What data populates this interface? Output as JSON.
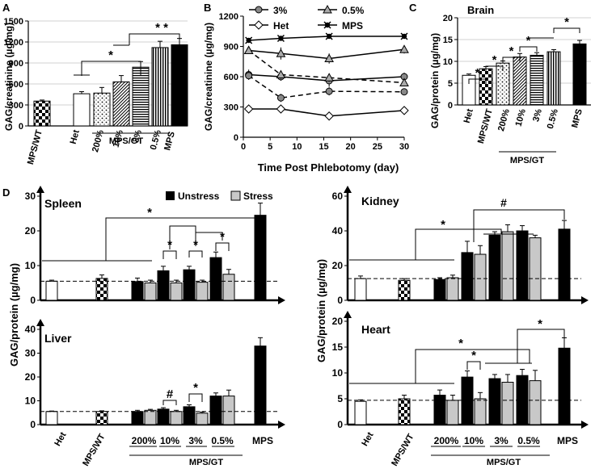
{
  "chart_data": [
    {
      "panel": "A",
      "type": "bar",
      "ylabel": "GAG/creatinine (µg/mg)",
      "ylim": [
        0,
        1500
      ],
      "yticks": [
        0,
        300,
        600,
        900,
        1200,
        1500
      ],
      "ytick_labels": [
        "0",
        "300",
        "600",
        "900",
        "1200",
        "1500"
      ],
      "categories": [
        "MPS/WT",
        "Het",
        "200%",
        "10%",
        "3%",
        "0.5%",
        "MPS"
      ],
      "values": [
        355,
        460,
        470,
        630,
        840,
        1120,
        1160
      ],
      "errors": [
        15,
        30,
        80,
        90,
        80,
        90,
        90
      ],
      "patterns": [
        "checker",
        "white",
        "dots",
        "diag",
        "hlines",
        "vlines",
        "black"
      ],
      "group_label": "MPS/GT",
      "sig": [
        {
          "label": "*",
          "from": "Het",
          "to": "3%"
        },
        {
          "label": "* *",
          "from": "Het",
          "to": "MPS"
        }
      ]
    },
    {
      "panel": "B",
      "type": "line",
      "xlabel": "Time Post Phlebotomy (day)",
      "ylabel": "GAG/creatinine (µg/mg)",
      "xlim": [
        0,
        30
      ],
      "ylim": [
        0,
        1200
      ],
      "xticks": [
        0,
        5,
        10,
        15,
        20,
        25,
        30
      ],
      "xtick_labels": [
        "0",
        "5",
        "10",
        "15",
        "20",
        "25",
        "30"
      ],
      "yticks": [
        0,
        300,
        600,
        900,
        1200
      ],
      "ytick_labels": [
        "0",
        "300",
        "600",
        "900",
        "1200"
      ],
      "legend": [
        "3%",
        "0.5%",
        "Het",
        "MPS"
      ],
      "series": [
        {
          "name": "3%",
          "marker": "circle",
          "dash": false,
          "x": [
            1,
            7,
            16,
            30
          ],
          "y": [
            620,
            600,
            560,
            600
          ],
          "err": [
            50,
            40,
            60,
            40
          ]
        },
        {
          "name": "3%",
          "marker": "circle",
          "dash": true,
          "x": [
            1,
            7,
            16,
            30
          ],
          "y": [
            610,
            390,
            455,
            450
          ],
          "err": [
            40,
            40,
            40,
            30
          ]
        },
        {
          "name": "0.5%",
          "marker": "triangle",
          "dash": false,
          "x": [
            1,
            7,
            16,
            30
          ],
          "y": [
            860,
            830,
            780,
            870
          ],
          "err": [
            30,
            60,
            50,
            40
          ]
        },
        {
          "name": "0.5%",
          "marker": "triangle",
          "dash": true,
          "x": [
            1,
            7,
            16,
            30
          ],
          "y": [
            860,
            620,
            590,
            540
          ],
          "err": [
            30,
            40,
            40,
            30
          ]
        },
        {
          "name": "Het",
          "marker": "diamond",
          "dash": false,
          "x": [
            1,
            7,
            16,
            30
          ],
          "y": [
            280,
            280,
            210,
            265
          ],
          "err": [
            10,
            10,
            10,
            15
          ]
        },
        {
          "name": "MPS",
          "marker": "x",
          "dash": false,
          "x": [
            1,
            7,
            16,
            30
          ],
          "y": [
            960,
            980,
            1000,
            1000
          ],
          "err": [
            15,
            20,
            20,
            15
          ]
        }
      ]
    },
    {
      "panel": "C",
      "type": "bar",
      "title": "Brain",
      "ylabel": "GAG/protein (µg/mg)",
      "ylim": [
        0,
        20
      ],
      "yticks": [
        0,
        5,
        10,
        15,
        20
      ],
      "ytick_labels": [
        "0",
        "5",
        "10",
        "15",
        "20"
      ],
      "categories": [
        "Het",
        "MPS/WT",
        "200%",
        "10%",
        "3%",
        "0.5%",
        "MPS"
      ],
      "values": [
        6.8,
        8.3,
        9.6,
        11.0,
        11.4,
        12.2,
        14.0
      ],
      "errors": [
        0.3,
        0.5,
        0.5,
        0.8,
        0.6,
        0.5,
        0.8
      ],
      "patterns": [
        "white",
        "checker",
        "dots",
        "diag",
        "hlines",
        "vlines",
        "black"
      ],
      "group_label": "MPS/GT",
      "sig": [
        {
          "label": "*",
          "from": "Het",
          "to": "MPS/WT"
        },
        {
          "label": "*",
          "from": "MPS/WT",
          "to": "200%"
        },
        {
          "label": "*",
          "from": "200%",
          "to": "10%"
        },
        {
          "label": "*",
          "from": "10%",
          "to": "3%"
        },
        {
          "label": "*",
          "from": "0.5%",
          "to": "MPS"
        }
      ]
    },
    {
      "panel": "D",
      "type": "bar",
      "title": "Spleen",
      "ylim": [
        0,
        30
      ],
      "yticks": [
        0,
        10,
        20,
        30
      ],
      "ytick_labels": [
        "0",
        "10",
        "20",
        "30"
      ],
      "legend": [
        "Unstress",
        "Stress"
      ],
      "categories": [
        "Het",
        "MPS/WT",
        "200%",
        "10%",
        "3%",
        "0.5%",
        "MPS"
      ],
      "series": [
        {
          "name": "Unstress",
          "values": [
            5.5,
            6.3,
            5.4,
            8.5,
            8.8,
            12.3,
            24.5
          ],
          "errors": [
            0.3,
            1.0,
            1.0,
            1.3,
            1.0,
            1.6,
            3.5
          ]
        },
        {
          "name": "Stress",
          "values": [
            null,
            null,
            5.0,
            5.0,
            5.2,
            7.5,
            null
          ],
          "errors": [
            null,
            null,
            0.8,
            0.8,
            0.6,
            1.4,
            null
          ]
        }
      ],
      "baseline": 5.5,
      "sig": [
        {
          "label": "*",
          "from": "200%",
          "to": "MPS"
        },
        {
          "label": "*",
          "from": "10%",
          "to": "10%"
        },
        {
          "label": "*",
          "from": "3%",
          "to": "3%"
        },
        {
          "label": "*",
          "from": "0.5%",
          "to": "0.5%"
        }
      ]
    },
    {
      "panel": "D",
      "type": "bar",
      "title": "Liver",
      "ylabel": "GAG/protein (µg/mg)",
      "ylim": [
        0,
        40
      ],
      "yticks": [
        0,
        10,
        20,
        30,
        40
      ],
      "ytick_labels": [
        "0",
        "10",
        "20",
        "30",
        "40"
      ],
      "categories": [
        "Het",
        "MPS/WT",
        "200%",
        "10%",
        "3%",
        "0.5%",
        "MPS"
      ],
      "series": [
        {
          "name": "Unstress",
          "values": [
            5.5,
            5.5,
            5.5,
            6.5,
            7.5,
            12.0,
            33.0
          ],
          "errors": [
            0.2,
            0.3,
            0.5,
            0.6,
            0.8,
            1.3,
            3.5
          ]
        },
        {
          "name": "Stress",
          "values": [
            null,
            null,
            6.0,
            5.5,
            4.8,
            12.0,
            null
          ],
          "errors": [
            null,
            null,
            0.4,
            0.5,
            0.5,
            2.5,
            null
          ]
        }
      ],
      "baseline": 5.5,
      "group_label": "MPS/GT",
      "sig": [
        {
          "label": "#",
          "from": "10%",
          "to": "10%"
        },
        {
          "label": "*",
          "from": "3%",
          "to": "3%"
        }
      ]
    },
    {
      "panel": "D",
      "type": "bar",
      "title": "Kidney",
      "ylim": [
        0,
        60
      ],
      "yticks": [
        0,
        20,
        40,
        60
      ],
      "ytick_labels": [
        "0",
        "20",
        "40",
        "60"
      ],
      "categories": [
        "Het",
        "MPS/WT",
        "200%",
        "10%",
        "3%",
        "0.5%",
        "MPS"
      ],
      "series": [
        {
          "name": "Unstress",
          "values": [
            12.5,
            11.5,
            12.0,
            27.5,
            37.5,
            40.0,
            41.0
          ],
          "errors": [
            1.5,
            1.0,
            1.0,
            6.5,
            2.0,
            3.0,
            5.0
          ]
        },
        {
          "name": "Stress",
          "values": [
            null,
            null,
            13.0,
            26.5,
            39.5,
            36.0,
            null
          ],
          "errors": [
            null,
            null,
            1.5,
            5.0,
            4.0,
            1.5,
            null
          ]
        }
      ],
      "baseline": 12.5,
      "sig": [
        {
          "label": "*",
          "from": "200%",
          "to": "3%"
        },
        {
          "label": "#",
          "from": "10%",
          "to": "MPS"
        }
      ]
    },
    {
      "panel": "D",
      "type": "bar",
      "title": "Heart",
      "ylabel": "GAG/protein (µg/mg)",
      "ylim": [
        0,
        20
      ],
      "yticks": [
        0,
        5,
        10,
        15,
        20
      ],
      "ytick_labels": [
        "0",
        "5",
        "10",
        "15",
        "20"
      ],
      "categories": [
        "Het",
        "MPS/WT",
        "200%",
        "10%",
        "3%",
        "0.5%",
        "MPS"
      ],
      "series": [
        {
          "name": "Unstress",
          "values": [
            4.5,
            5.0,
            5.7,
            9.2,
            8.9,
            9.5,
            14.8
          ],
          "errors": [
            0.3,
            0.7,
            1.0,
            1.2,
            0.8,
            1.2,
            2.0
          ]
        },
        {
          "name": "Stress",
          "values": [
            null,
            null,
            4.7,
            5.0,
            8.2,
            8.5,
            null
          ],
          "errors": [
            null,
            null,
            1.0,
            1.2,
            1.5,
            2.0,
            null
          ]
        }
      ],
      "baseline": 4.7,
      "group_label": "MPS/GT",
      "sig": [
        {
          "label": "*",
          "from": "200%",
          "to": "MPS"
        },
        {
          "label": "*",
          "from": "10%",
          "to": "10%"
        },
        {
          "label": "*",
          "from": "0.5%",
          "to": "MPS"
        }
      ]
    }
  ],
  "panel_labels": [
    "A",
    "B",
    "C",
    "D"
  ]
}
